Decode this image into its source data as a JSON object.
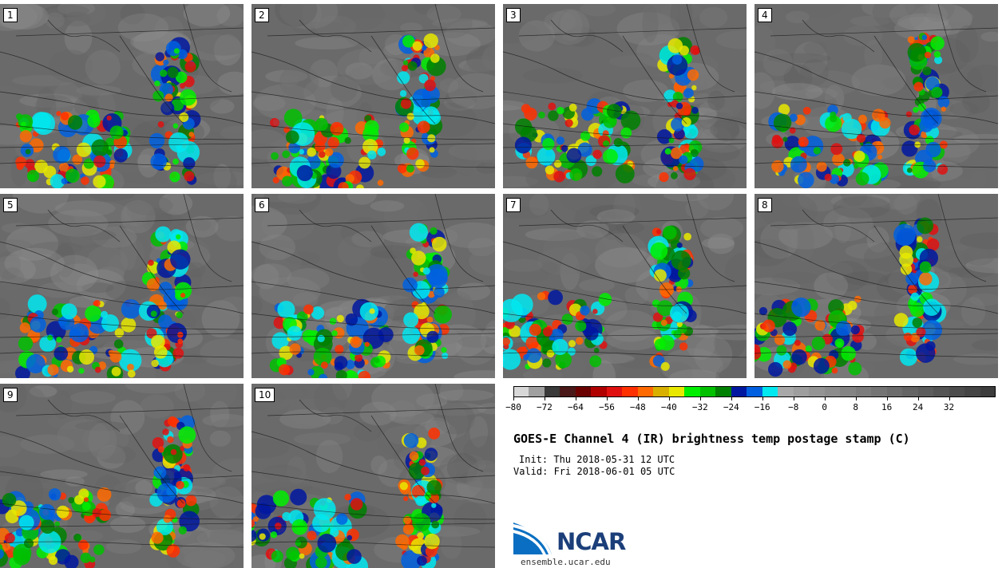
{
  "panels": [
    {
      "label": "1"
    },
    {
      "label": "2"
    },
    {
      "label": "3"
    },
    {
      "label": "4"
    },
    {
      "label": "5"
    },
    {
      "label": "6"
    },
    {
      "label": "7"
    },
    {
      "label": "8"
    },
    {
      "label": "9"
    },
    {
      "label": "10"
    }
  ],
  "colorbar": {
    "colors": [
      "#d8d8d8",
      "#a0a0a0",
      "#3a3a3a",
      "#4a1818",
      "#6a0000",
      "#b00000",
      "#e01010",
      "#ff3000",
      "#ff6a00",
      "#d8b000",
      "#e8e800",
      "#00ee00",
      "#00c000",
      "#008000",
      "#0018a0",
      "#0060e0",
      "#00e8f0",
      "#a8a8a8",
      "#9e9e9e",
      "#949494",
      "#8c8c8c",
      "#848484",
      "#7c7c7c",
      "#747474",
      "#6c6c6c",
      "#646464",
      "#5c5c5c",
      "#545454",
      "#4c4c4c",
      "#444444",
      "#3c3c3c"
    ],
    "tick_labels": [
      "−80",
      "−72",
      "−64",
      "−56",
      "−48",
      "−40",
      "−32",
      "−24",
      "−16",
      "−8",
      "0",
      "8",
      "16",
      "24",
      "32"
    ]
  },
  "title": "GOES-E Channel 4 (IR) brightness temp postage stamp (C)",
  "init": "Init: Thu 2018-05-31 12 UTC",
  "valid": "Valid: Fri 2018-06-01 05 UTC",
  "logo_text": "NCAR",
  "site": "ensemble.ucar.edu"
}
